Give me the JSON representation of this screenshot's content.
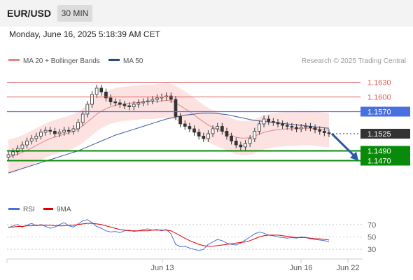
{
  "header": {
    "symbol": "EUR/USD",
    "timeframe": "30 MIN",
    "datetime": "Monday, June 16, 2025 5:18:39 AM CET"
  },
  "legend": {
    "bollinger_label": "MA 20 + Bollinger Bands",
    "ma50_label": "MA 50",
    "credit": "Research © 2025 Trading Central"
  },
  "rsi_legend": {
    "rsi_label": "RSI",
    "ma_label": "9MA"
  },
  "colors": {
    "resistance": "#e05a5a",
    "pivot": "#4a6fe0",
    "support": "#0a8a0a",
    "current": "#333333",
    "bollinger_fill": "#fcd8d8",
    "ma20": "#d98a8a",
    "ma50": "#3a5a9c",
    "rsi": "#4a6fe0",
    "rsi_ma": "#e00000",
    "arrow": "#2b5aa8"
  },
  "chart_data": [
    {
      "type": "candlestick",
      "title": "",
      "ylim": [
        1.1405,
        1.1655
      ],
      "x_ticks": [
        "Jun 13",
        "Jun 16",
        "Jun 22"
      ],
      "levels": [
        {
          "label": "1.1630",
          "value": 1.163,
          "role": "resistance"
        },
        {
          "label": "1.1600",
          "value": 1.16,
          "role": "resistance"
        },
        {
          "label": "1.1570",
          "value": 1.157,
          "role": "pivot"
        },
        {
          "label": "1.1525",
          "value": 1.1525,
          "role": "current"
        },
        {
          "label": "1.1490",
          "value": 1.149,
          "role": "support"
        },
        {
          "label": "1.1470",
          "value": 1.147,
          "role": "support"
        }
      ],
      "close_series": [
        1.1482,
        1.1488,
        1.1495,
        1.1502,
        1.151,
        1.1515,
        1.152,
        1.1528,
        1.1532,
        1.153,
        1.1525,
        1.1528,
        1.1532,
        1.153,
        1.1535,
        1.1548,
        1.1565,
        1.1585,
        1.1605,
        1.1618,
        1.161,
        1.1598,
        1.159,
        1.1588,
        1.1585,
        1.1582,
        1.158,
        1.1585,
        1.1588,
        1.159,
        1.1592,
        1.1595,
        1.1598,
        1.16,
        1.1602,
        1.1595,
        1.156,
        1.1545,
        1.154,
        1.1535,
        1.1528,
        1.152,
        1.1515,
        1.1525,
        1.1535,
        1.154,
        1.153,
        1.152,
        1.151,
        1.1502,
        1.1498,
        1.1505,
        1.1515,
        1.153,
        1.1545,
        1.1555,
        1.155,
        1.1548,
        1.1545,
        1.1542,
        1.154,
        1.1538,
        1.1535,
        1.1538,
        1.154,
        1.1537,
        1.1533,
        1.153,
        1.1527,
        1.1525
      ],
      "ma20_series": [
        1.1478,
        1.148,
        1.1483,
        1.1487,
        1.1491,
        1.1496,
        1.1501,
        1.1506,
        1.1511,
        1.1515,
        1.1518,
        1.1521,
        1.1524,
        1.1527,
        1.153,
        1.1535,
        1.1541,
        1.1549,
        1.1557,
        1.1565,
        1.1571,
        1.1576,
        1.158,
        1.1583,
        1.1585,
        1.1586,
        1.1587,
        1.1588,
        1.1589,
        1.159,
        1.159,
        1.159,
        1.1591,
        1.1592,
        1.1593,
        1.1592,
        1.1588,
        1.1582,
        1.1576,
        1.157,
        1.1563,
        1.1556,
        1.1549,
        1.1543,
        1.1538,
        1.1534,
        1.153,
        1.1526,
        1.1522,
        1.1518,
        1.1516,
        1.1516,
        1.1517,
        1.152,
        1.1524,
        1.1528,
        1.153,
        1.1532,
        1.1533,
        1.1534,
        1.1535,
        1.1535,
        1.1535,
        1.1536,
        1.1536,
        1.1536,
        1.1535,
        1.1534,
        1.1533,
        1.1532
      ],
      "ma50_series": [
        1.1445,
        1.1448,
        1.1451,
        1.1454,
        1.1457,
        1.146,
        1.1463,
        1.1466,
        1.1469,
        1.1472,
        1.1475,
        1.1478,
        1.1481,
        1.1484,
        1.1487,
        1.149,
        1.1494,
        1.1498,
        1.1502,
        1.1506,
        1.151,
        1.1514,
        1.1518,
        1.1522,
        1.1525,
        1.1528,
        1.1531,
        1.1534,
        1.1537,
        1.154,
        1.1543,
        1.1546,
        1.1549,
        1.1552,
        1.1555,
        1.1557,
        1.1559,
        1.1561,
        1.1563,
        1.1564,
        1.1565,
        1.1566,
        1.1567,
        1.1567,
        1.1567,
        1.1566,
        1.1565,
        1.1564,
        1.1562,
        1.156,
        1.1558,
        1.1556,
        1.1554,
        1.1552,
        1.1551,
        1.155,
        1.1549,
        1.1548,
        1.1547,
        1.1546,
        1.1545,
        1.1544,
        1.1543,
        1.1542,
        1.1541,
        1.154,
        1.1539,
        1.1538,
        1.1537,
        1.1536
      ],
      "band_width": 0.0035,
      "projection": {
        "from": 1.1525,
        "to": 1.147
      }
    },
    {
      "type": "line",
      "title": "",
      "ylim": [
        20,
        80
      ],
      "y_ticks": [
        70,
        50,
        30
      ],
      "series": [
        {
          "name": "RSI",
          "values": [
            65,
            68,
            70,
            66,
            69,
            72,
            68,
            70,
            67,
            64,
            66,
            70,
            73,
            68,
            66,
            71,
            76,
            78,
            73,
            67,
            64,
            60,
            58,
            59,
            57,
            60,
            61,
            59,
            60,
            62,
            63,
            61,
            62,
            60,
            62,
            55,
            38,
            34,
            35,
            32,
            30,
            28,
            30,
            38,
            42,
            46,
            44,
            40,
            38,
            37,
            40,
            45,
            50,
            55,
            58,
            56,
            53,
            52,
            50,
            49,
            48,
            49,
            48,
            50,
            49,
            47,
            46,
            45,
            44,
            42
          ]
        },
        {
          "name": "9MA",
          "values": [
            66,
            66,
            67,
            67,
            68,
            68,
            69,
            69,
            69,
            69,
            68,
            68,
            68,
            69,
            69,
            70,
            71,
            72,
            72,
            71,
            70,
            68,
            66,
            64,
            62,
            61,
            60,
            60,
            60,
            60,
            60,
            61,
            61,
            61,
            61,
            60,
            56,
            52,
            48,
            44,
            41,
            38,
            36,
            35,
            35,
            36,
            37,
            38,
            39,
            40,
            41,
            42,
            44,
            47,
            50,
            52,
            53,
            53,
            53,
            52,
            51,
            50,
            49,
            49,
            49,
            48,
            47,
            47,
            46,
            45
          ]
        }
      ]
    }
  ]
}
